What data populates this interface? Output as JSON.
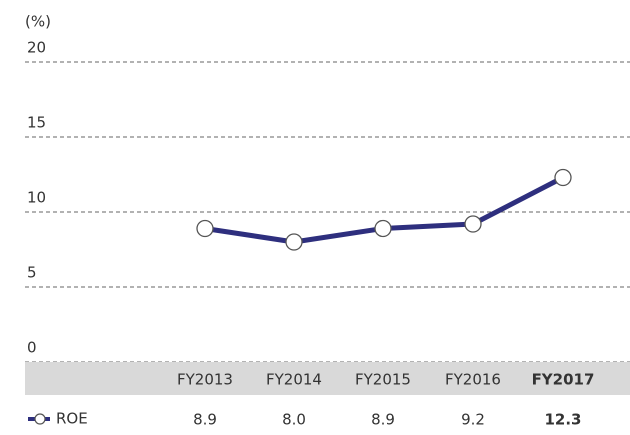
{
  "chart_data": {
    "type": "line",
    "y_unit_label": "(%)",
    "categories": [
      "FY2013",
      "FY2014",
      "FY2015",
      "FY2016",
      "FY2017"
    ],
    "series": [
      {
        "name": "ROE",
        "color": "#2e2f7e",
        "values": [
          8.9,
          8.0,
          8.9,
          9.2,
          12.3
        ],
        "value_labels": [
          "8.9",
          "8.0",
          "8.9",
          "9.2",
          "12.3"
        ]
      }
    ],
    "ylim": [
      0,
      20
    ],
    "yticks": [
      0,
      5,
      10,
      15,
      20
    ],
    "grid": true,
    "highlight_last": true
  }
}
